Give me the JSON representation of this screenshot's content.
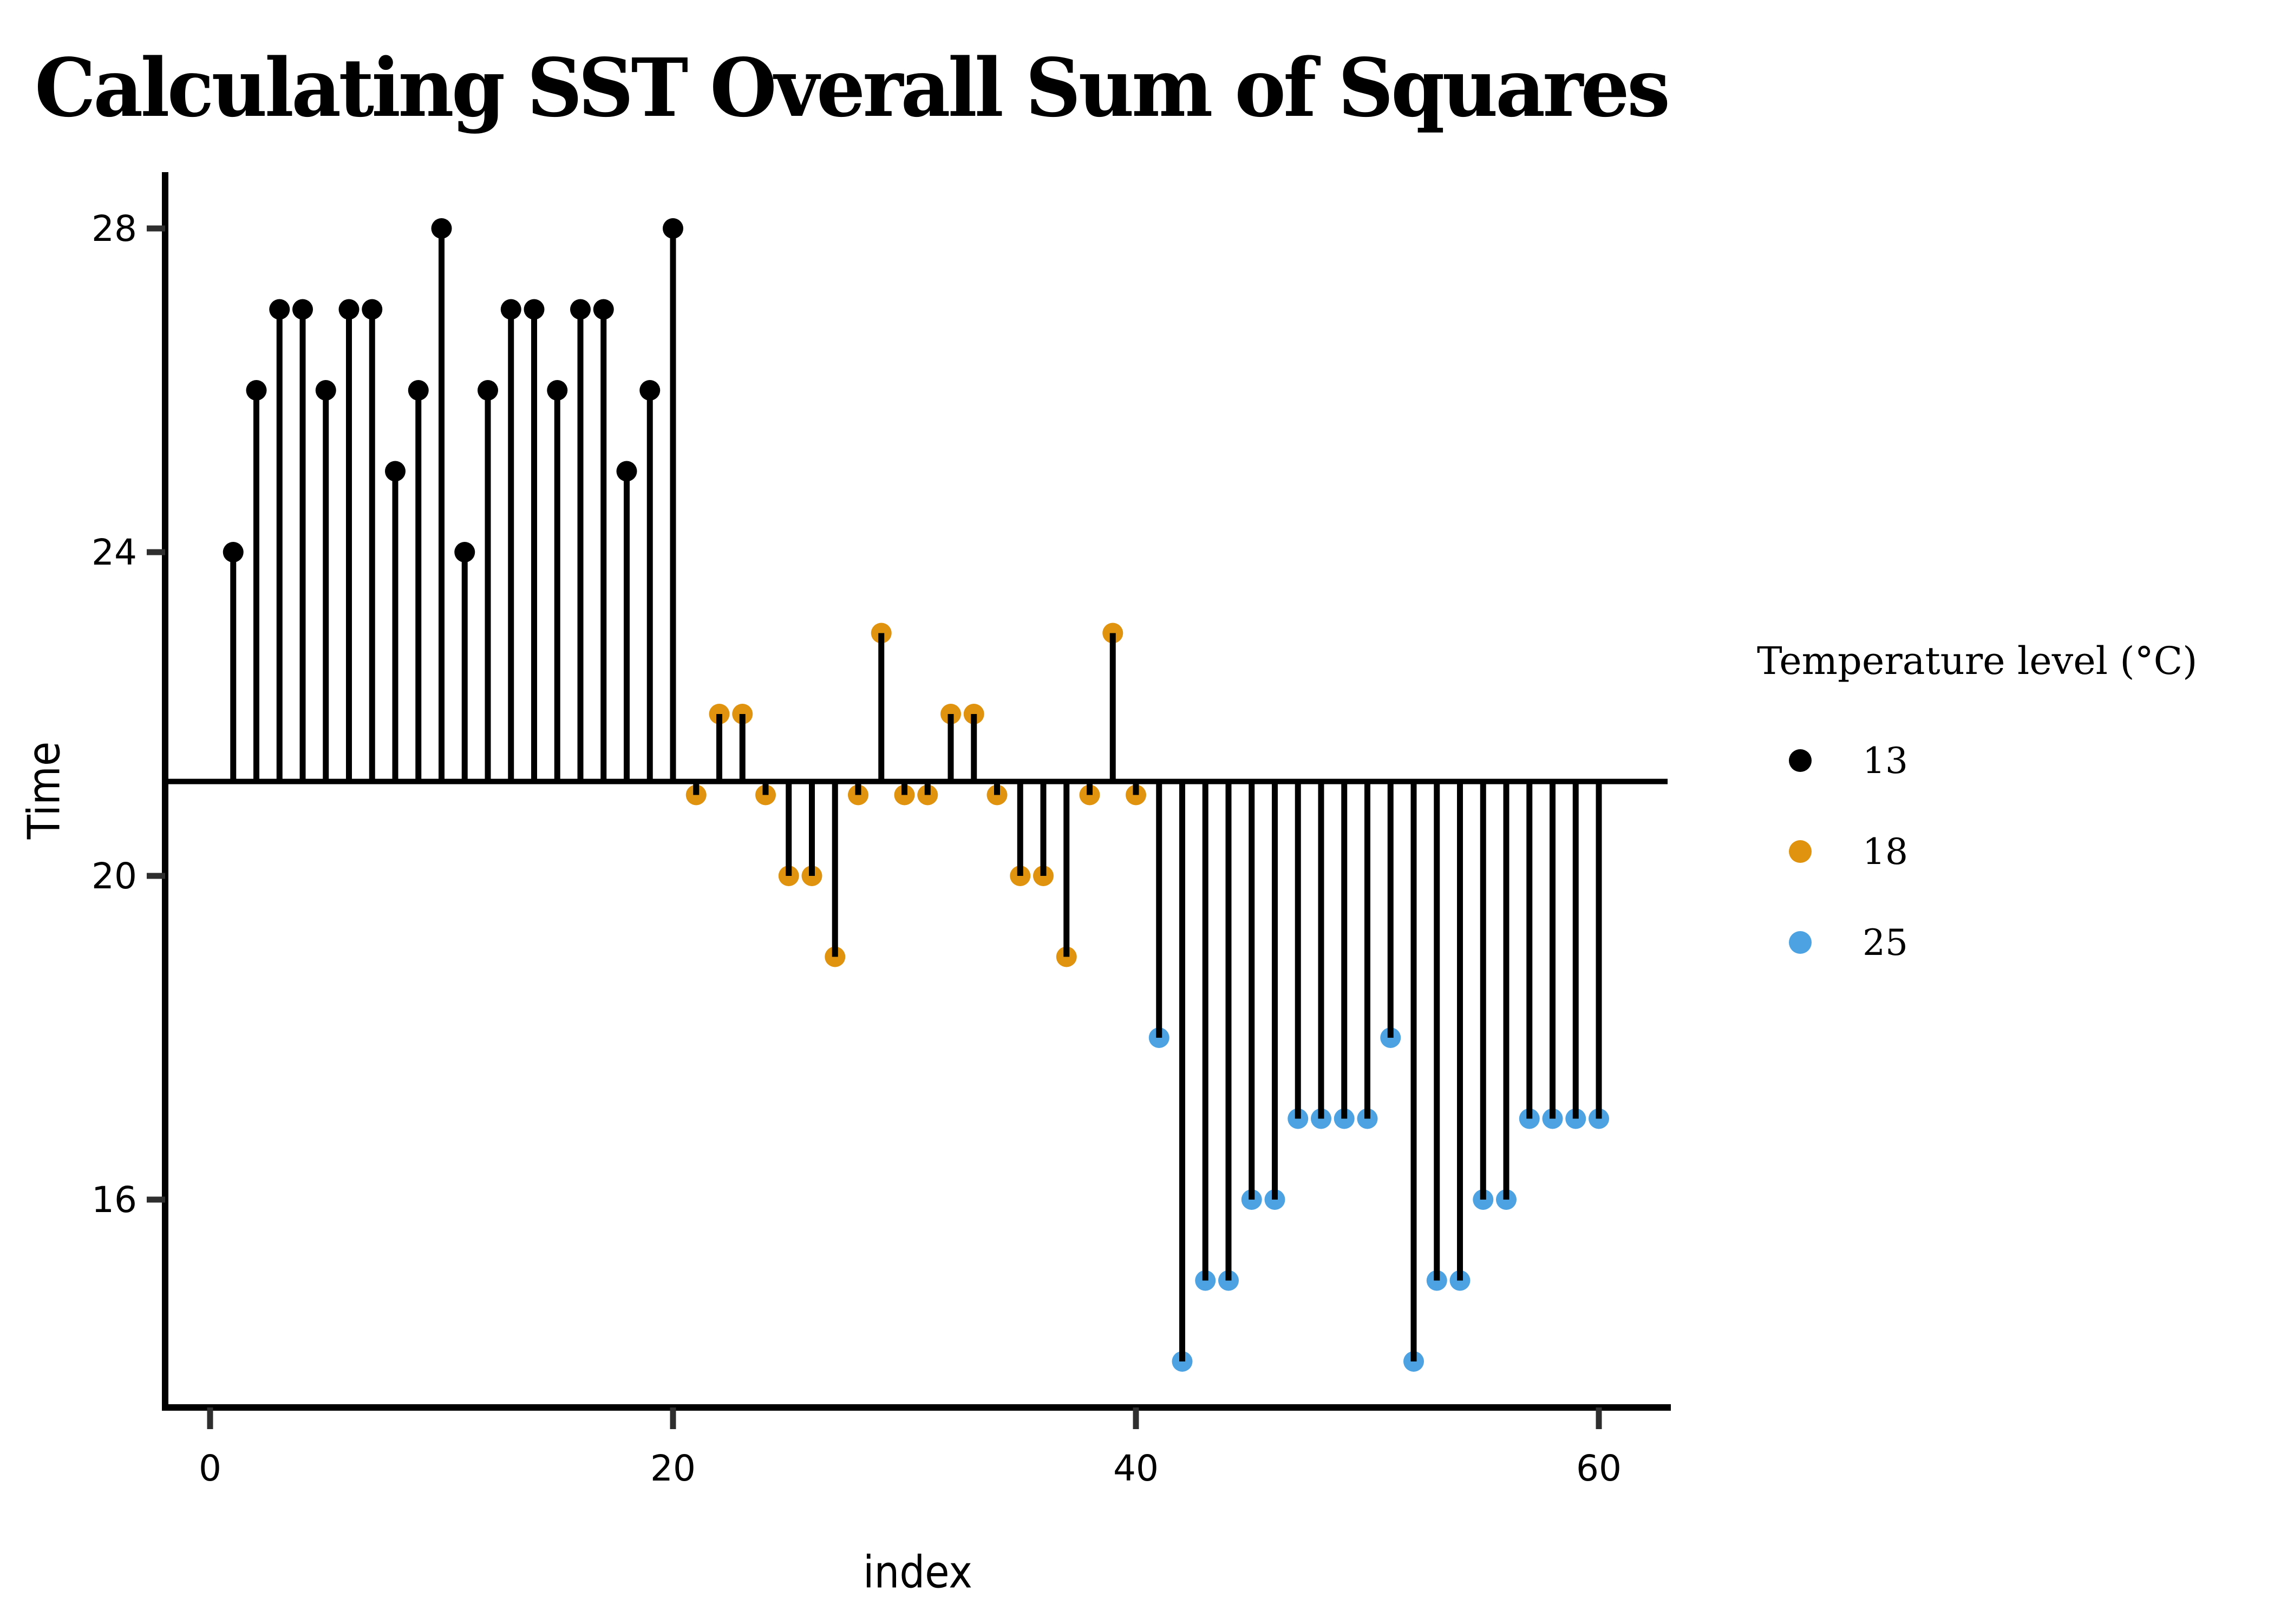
{
  "chart_data": {
    "type": "lollipop-stem",
    "title": "Calculating SST Overall Sum of Squares",
    "xlabel": "index",
    "ylabel": "Time",
    "x_ticks": [
      0,
      20,
      40,
      60
    ],
    "y_ticks": [
      16,
      20,
      24,
      28
    ],
    "xlim": [
      -2,
      63.5
    ],
    "ylim": [
      13.4,
      28.7
    ],
    "grid": "off",
    "baseline_mean": 21.1667,
    "baseline_note": "horizontal line at overall mean of Time; stems drop from each point to this line",
    "series": [
      {
        "name": "13",
        "color": "#000000",
        "start_index": 1,
        "values": [
          24,
          26,
          27,
          27,
          26,
          27,
          27,
          25,
          26,
          28,
          24,
          26,
          27,
          27,
          26,
          27,
          27,
          25,
          26,
          28
        ]
      },
      {
        "name": "18",
        "color": "#E0930F",
        "start_index": 21,
        "values": [
          21,
          22,
          22,
          21,
          20,
          20,
          19,
          21,
          23,
          21,
          21,
          22,
          22,
          21,
          20,
          20,
          19,
          21,
          23,
          21
        ]
      },
      {
        "name": "25",
        "color": "#4DA3E2",
        "start_index": 41,
        "values": [
          18,
          14,
          15,
          15,
          16,
          16,
          17,
          17,
          17,
          17,
          18,
          14,
          15,
          15,
          16,
          16,
          17,
          17,
          17,
          17
        ]
      }
    ]
  },
  "legend": {
    "title": "Temperature level (°C)",
    "position": "right",
    "items": [
      {
        "label": "13",
        "color": "#000000"
      },
      {
        "label": "18",
        "color": "#E0930F"
      },
      {
        "label": "25",
        "color": "#4DA3E2"
      }
    ]
  }
}
